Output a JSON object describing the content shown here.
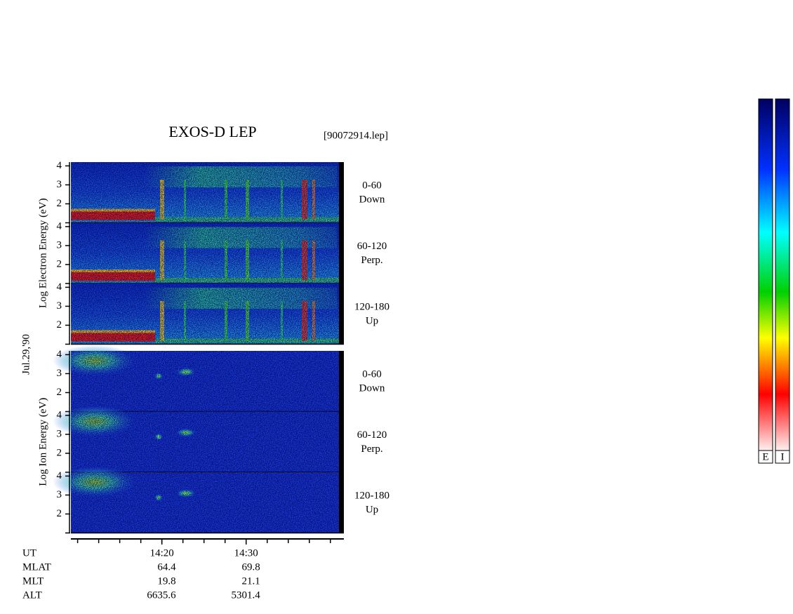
{
  "chart_data": {
    "type": "spectrogram",
    "title": "EXOS-D LEP",
    "file": "[90072914.lep]",
    "date": "Jul.29,'90",
    "xlim": [
      849.2,
      881.6
    ],
    "xticks": [
      {
        "value": 860,
        "label": "14:20"
      },
      {
        "value": 870,
        "label": "14:30"
      }
    ],
    "xminor": [
      850,
      852.5,
      855,
      857.5,
      860,
      862.5,
      865,
      867.5,
      870,
      872.5,
      875,
      877.5,
      880
    ],
    "ylim": [
      1,
      4.2
    ],
    "yticks": [
      2,
      3,
      4
    ],
    "groups": [
      {
        "species": "electron",
        "ylabel": "Log Electron Energy (eV)",
        "panels": [
          {
            "range": "0-60",
            "direction": "Down"
          },
          {
            "range": "60-120",
            "direction": "Perp."
          },
          {
            "range": "120-180",
            "direction": "Up"
          }
        ]
      },
      {
        "species": "ion",
        "ylabel": "Log Ion Energy (eV)",
        "panels": [
          {
            "range": "0-60",
            "direction": "Down"
          },
          {
            "range": "60-120",
            "direction": "Perp."
          },
          {
            "range": "120-180",
            "direction": "Up"
          }
        ]
      }
    ],
    "orbit": {
      "labels": [
        "UT",
        "MLAT",
        "MLT",
        "ALT"
      ],
      "values": [
        [
          64.4,
          19.8,
          6635.6
        ],
        [
          69.8,
          21.1,
          5301.4
        ]
      ]
    },
    "colorbars": [
      "E",
      "I"
    ]
  }
}
